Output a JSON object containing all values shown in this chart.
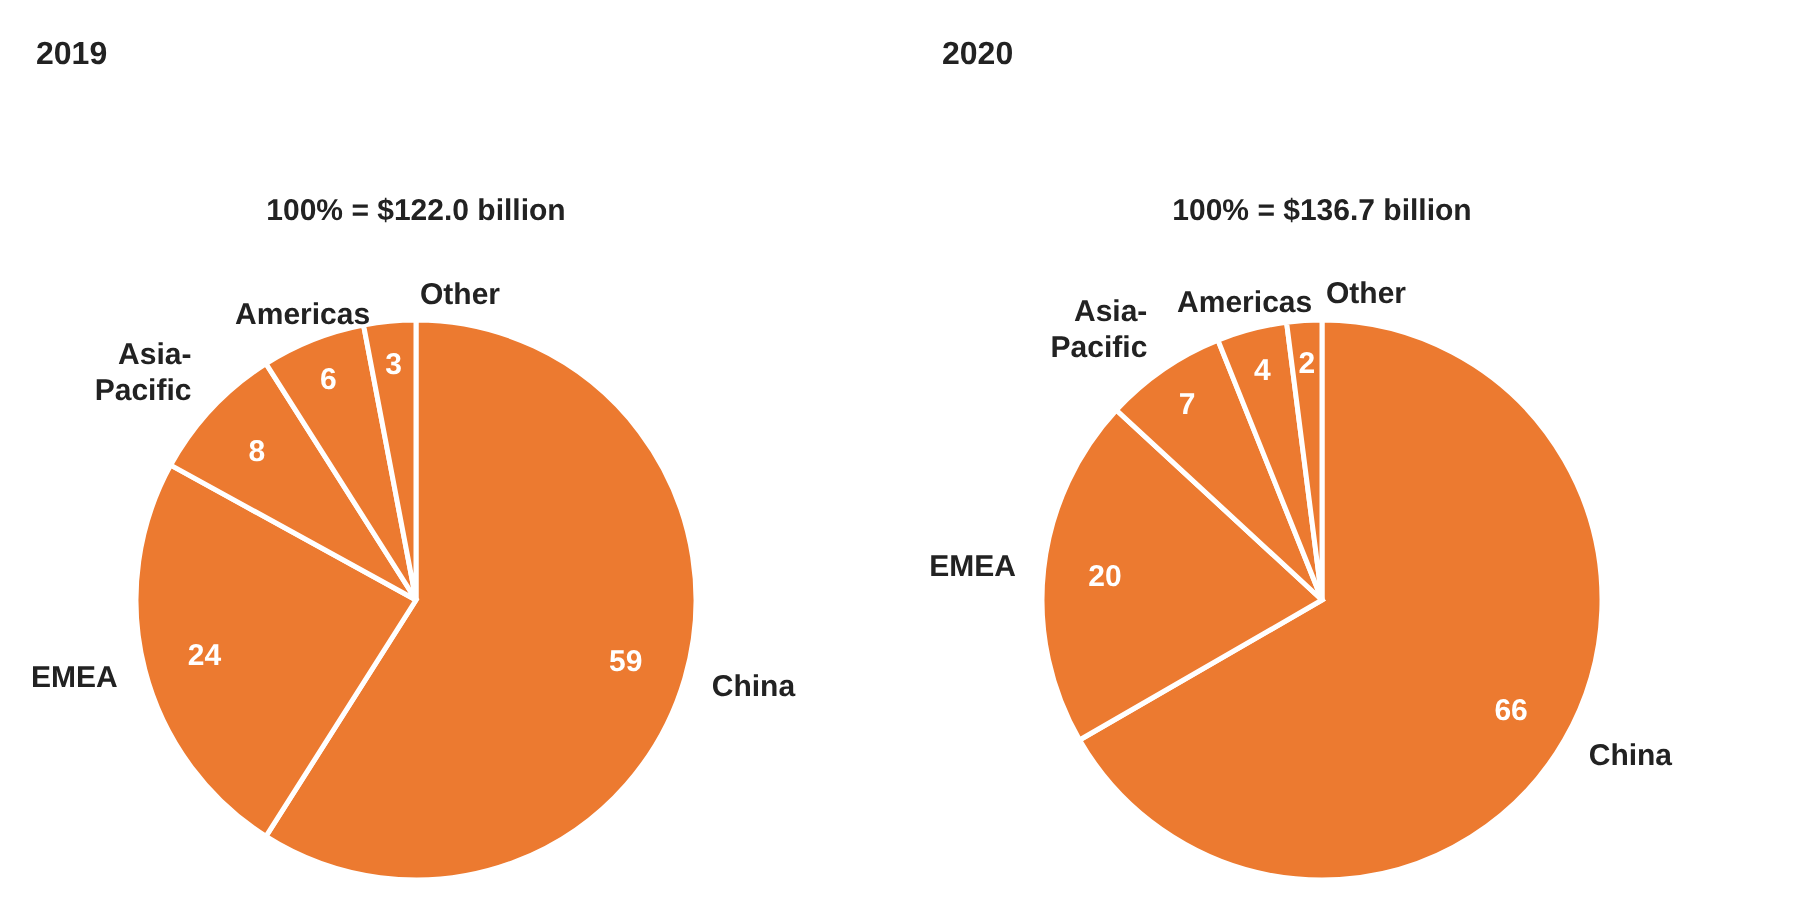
{
  "chart_data": [
    {
      "type": "pie",
      "title": "2019",
      "subtitle": "100% = $122.0 billion",
      "categories": [
        "China",
        "EMEA",
        "Asia-Pacific",
        "Americas",
        "Other"
      ],
      "values": [
        59,
        24,
        8,
        6,
        3
      ],
      "colors": [
        "#ec7a30",
        "#ec7a30",
        "#ec7a30",
        "#ec7a30",
        "#ec7a30"
      ],
      "data_labels": true
    },
    {
      "type": "pie",
      "title": "2020",
      "subtitle": "100% = $136.7 billion",
      "categories": [
        "China",
        "EMEA",
        "Asia-Pacific",
        "Americas",
        "Other"
      ],
      "values": [
        66,
        20,
        7,
        4,
        2
      ],
      "colors": [
        "#ec7a30",
        "#ec7a30",
        "#ec7a30",
        "#ec7a30",
        "#ec7a30"
      ],
      "data_labels": true
    }
  ]
}
